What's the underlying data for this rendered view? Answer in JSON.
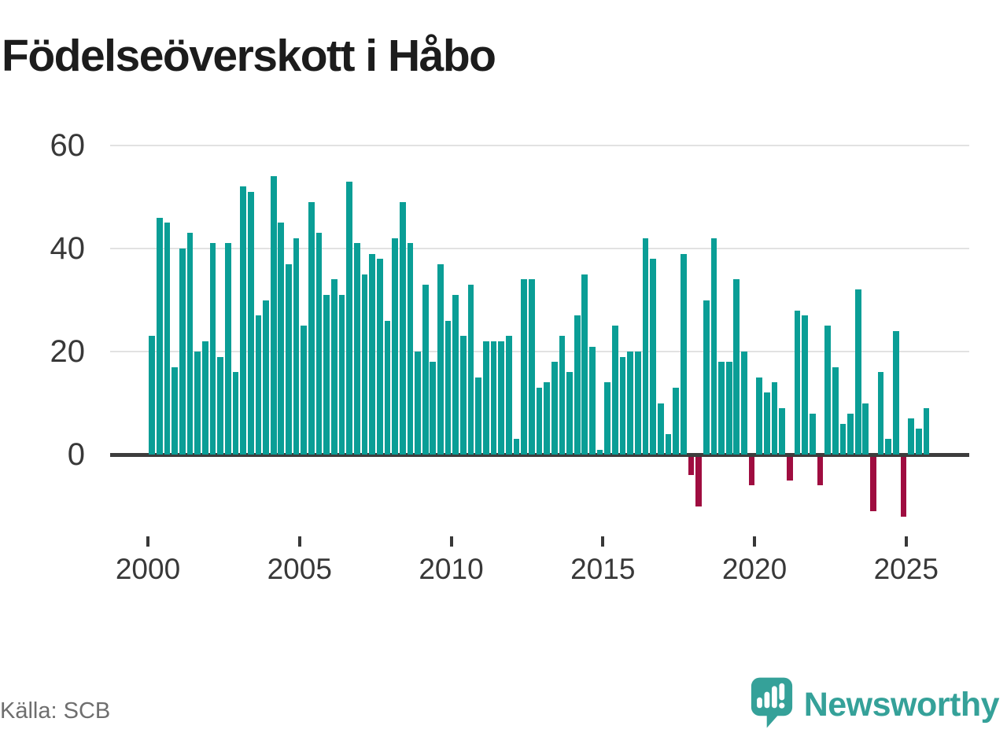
{
  "title": "Födelseöverskott i Håbo",
  "source": "Källa: SCB",
  "brand": {
    "name": "Newsworthy",
    "icon": "speech-bubble-chart-icon"
  },
  "colors": {
    "bar_positive": "#0a9e96",
    "bar_negative": "#9f0d40",
    "gridline": "#e2e2e2",
    "axis": "#3d3d3d",
    "title_text": "#1c1c1c",
    "tick_text": "#383838",
    "source_text": "#6e6e6e",
    "brand_teal": "#35a199"
  },
  "chart_data": {
    "type": "bar",
    "title": "Födelseöverskott i Håbo",
    "xlabel": "",
    "ylabel": "",
    "x_period": "quarterly",
    "x_range": "2000Q1–2025Q3",
    "series_name": "Födelseöverskott",
    "yticks": [
      0,
      20,
      40,
      60
    ],
    "xticks": [
      2000,
      2005,
      2010,
      2015,
      2020,
      2025
    ],
    "ylim": [
      -14,
      62
    ],
    "grid": "horizontal",
    "legend": "none",
    "values_by_year": [
      {
        "year": 2000,
        "quarters": [
          23,
          46,
          45,
          17
        ]
      },
      {
        "year": 2001,
        "quarters": [
          40,
          43,
          20,
          22
        ]
      },
      {
        "year": 2002,
        "quarters": [
          41,
          19,
          41,
          16
        ]
      },
      {
        "year": 2003,
        "quarters": [
          52,
          51,
          27,
          30
        ]
      },
      {
        "year": 2004,
        "quarters": [
          54,
          45,
          37,
          42
        ]
      },
      {
        "year": 2005,
        "quarters": [
          25,
          49,
          43,
          31
        ]
      },
      {
        "year": 2006,
        "quarters": [
          34,
          31,
          53,
          41
        ]
      },
      {
        "year": 2007,
        "quarters": [
          35,
          39,
          38,
          26
        ]
      },
      {
        "year": 2008,
        "quarters": [
          42,
          49,
          41,
          20
        ]
      },
      {
        "year": 2009,
        "quarters": [
          33,
          18,
          37,
          26
        ]
      },
      {
        "year": 2010,
        "quarters": [
          31,
          23,
          33,
          15
        ]
      },
      {
        "year": 2011,
        "quarters": [
          22,
          22,
          22,
          23
        ]
      },
      {
        "year": 2012,
        "quarters": [
          3,
          34,
          34,
          13
        ]
      },
      {
        "year": 2013,
        "quarters": [
          14,
          18,
          23,
          16
        ]
      },
      {
        "year": 2014,
        "quarters": [
          27,
          35,
          21,
          1
        ]
      },
      {
        "year": 2015,
        "quarters": [
          14,
          25,
          19,
          20
        ]
      },
      {
        "year": 2016,
        "quarters": [
          20,
          42,
          38,
          10
        ]
      },
      {
        "year": 2017,
        "quarters": [
          4,
          13,
          39,
          -4
        ]
      },
      {
        "year": 2018,
        "quarters": [
          -10,
          30,
          42,
          18
        ]
      },
      {
        "year": 2019,
        "quarters": [
          18,
          34,
          20,
          -6
        ]
      },
      {
        "year": 2020,
        "quarters": [
          15,
          12,
          14,
          9
        ]
      },
      {
        "year": 2021,
        "quarters": [
          -5,
          28,
          27,
          8
        ]
      },
      {
        "year": 2022,
        "quarters": [
          -6,
          25,
          17,
          6
        ]
      },
      {
        "year": 2023,
        "quarters": [
          8,
          32,
          10,
          -11
        ]
      },
      {
        "year": 2024,
        "quarters": [
          16,
          3,
          24,
          -12
        ]
      },
      {
        "year": 2025,
        "quarters": [
          7,
          5,
          9
        ]
      }
    ]
  }
}
